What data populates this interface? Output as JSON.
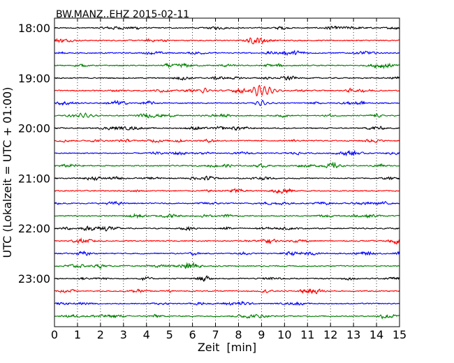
{
  "chart_data": {
    "type": "line",
    "title": "BW.MANZ..EHZ 2015-02-11",
    "xlabel": "Zeit  [min]",
    "ylabel": "UTC (Lokalzeit = UTC + 01:00)",
    "xlim": [
      0,
      15
    ],
    "x_ticks": [
      "0",
      "1",
      "2",
      "3",
      "4",
      "5",
      "6",
      "7",
      "8",
      "9",
      "10",
      "11",
      "12",
      "13",
      "14",
      "15"
    ],
    "y_ticks": [
      "18:00",
      "19:00",
      "20:00",
      "21:00",
      "22:00",
      "23:00"
    ],
    "y_tick_rows": [
      0,
      4,
      8,
      12,
      16,
      20
    ],
    "grid": "vertical dotted",
    "trace_colors": [
      "#000000",
      "#ff0000",
      "#0000ff",
      "#008000"
    ],
    "trace_count": 24,
    "trace_interval_min": 15,
    "events": [
      {
        "row": 5,
        "time_min": 8.85,
        "amplitude": 2.8
      },
      {
        "row": 5,
        "time_min": 6.5,
        "amplitude": 1.0
      },
      {
        "row": 5,
        "time_min": 9.3,
        "amplitude": 1.2
      },
      {
        "row": 7,
        "time_min": 1.3,
        "amplitude": 1.2
      },
      {
        "row": 6,
        "time_min": 9.0,
        "amplitude": 1.3
      }
    ]
  }
}
